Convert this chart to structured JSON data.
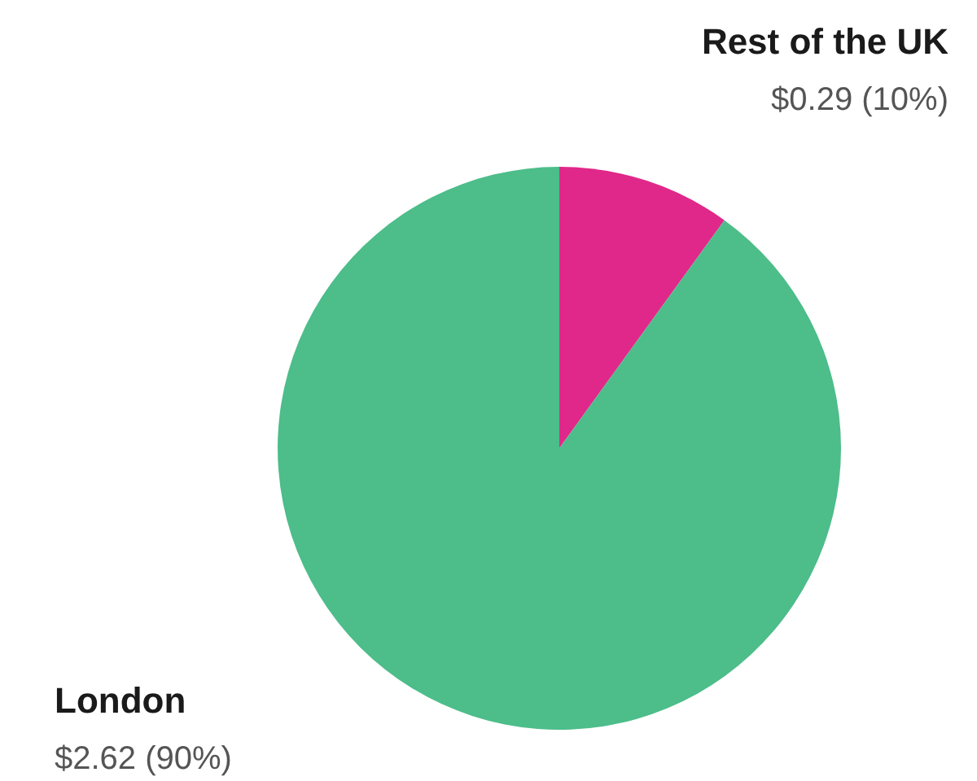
{
  "chart_data": {
    "type": "pie",
    "categories": [
      "Rest of the UK",
      "London"
    ],
    "values": [
      0.29,
      2.62
    ],
    "colors": [
      "#e0288a",
      "#4dbd8a"
    ],
    "value_labels": [
      "$0.29 (10%)",
      "$2.62 (90%)"
    ]
  }
}
